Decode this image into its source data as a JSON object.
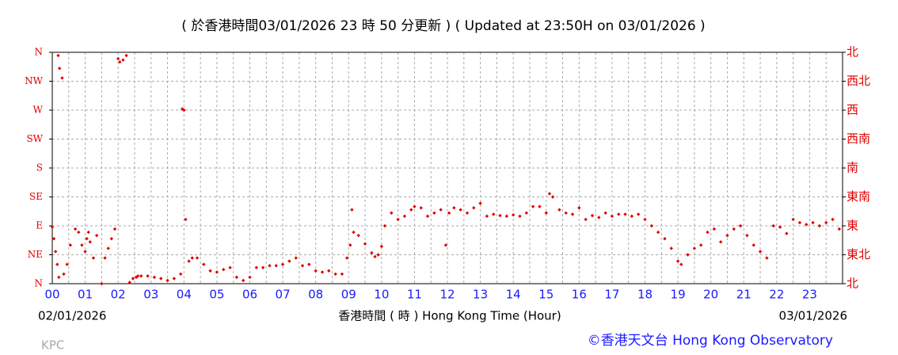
{
  "chart_data": {
    "type": "scatter",
    "title": "( 於香港時間03/01/2026 23 時 50 分更新 ) ( Updated at 23:50H on 03/01/2026 )",
    "x_label": "香港時間 ( 時 ) Hong Kong Time (Hour)",
    "start_date": "02/01/2026",
    "end_date": "03/01/2026",
    "station": "KPC",
    "credit": "©香港天文台 Hong Kong Observatory",
    "color": "#e00000",
    "grid": true,
    "xlim": [
      0,
      24
    ],
    "xticks": [
      {
        "value": 0,
        "label": "00"
      },
      {
        "value": 1,
        "label": "01"
      },
      {
        "value": 2,
        "label": "02"
      },
      {
        "value": 3,
        "label": "03"
      },
      {
        "value": 4,
        "label": "04"
      },
      {
        "value": 5,
        "label": "05"
      },
      {
        "value": 6,
        "label": "06"
      },
      {
        "value": 7,
        "label": "07"
      },
      {
        "value": 8,
        "label": "08"
      },
      {
        "value": 9,
        "label": "09"
      },
      10,
      11,
      12,
      13,
      14,
      15,
      16,
      17,
      18,
      19,
      20,
      21,
      22,
      23
    ],
    "ylim": [
      0,
      360
    ],
    "yticks": [
      {
        "value": 0,
        "label": "N"
      },
      {
        "value": 45,
        "label": "NE"
      },
      {
        "value": 90,
        "label": "E"
      },
      {
        "value": 135,
        "label": "SE"
      },
      {
        "value": 180,
        "label": "S"
      },
      {
        "value": 225,
        "label": "SW"
      },
      {
        "value": 270,
        "label": "W"
      },
      {
        "value": 315,
        "label": "NW"
      },
      {
        "value": 360,
        "label": "N"
      }
    ],
    "y2lim": [
      0,
      360
    ],
    "y2ticks": [
      {
        "value": 0,
        "label": "北"
      },
      {
        "value": 45,
        "label": "東北"
      },
      {
        "value": 90,
        "label": "東"
      },
      {
        "value": 135,
        "label": "東南"
      },
      {
        "value": 180,
        "label": "南"
      },
      {
        "value": 225,
        "label": "西南"
      },
      {
        "value": 270,
        "label": "西"
      },
      {
        "value": 315,
        "label": "西北"
      },
      {
        "value": 360,
        "label": "北"
      }
    ],
    "x": [
      0.0,
      0.05,
      0.1,
      0.15,
      0.2,
      0.18,
      0.22,
      0.3,
      0.35,
      0.45,
      0.55,
      0.7,
      0.8,
      0.9,
      1.0,
      1.05,
      1.1,
      1.15,
      1.25,
      1.35,
      1.5,
      1.6,
      1.7,
      1.8,
      1.9,
      2.0,
      2.05,
      2.15,
      2.25,
      2.35,
      2.45,
      2.55,
      2.6,
      2.7,
      2.9,
      3.1,
      3.3,
      3.5,
      3.7,
      3.9,
      3.95,
      4.0,
      4.05,
      4.15,
      4.25,
      4.4,
      4.6,
      4.8,
      5.0,
      5.2,
      5.4,
      5.6,
      5.8,
      6.0,
      6.2,
      6.4,
      6.6,
      6.8,
      7.0,
      7.2,
      7.4,
      7.6,
      7.8,
      8.0,
      8.2,
      8.4,
      8.6,
      8.8,
      8.95,
      9.05,
      9.1,
      9.15,
      9.3,
      9.5,
      9.7,
      9.8,
      9.9,
      10.0,
      10.1,
      10.3,
      10.5,
      10.7,
      10.9,
      11.0,
      11.2,
      11.4,
      11.6,
      11.8,
      11.95,
      12.05,
      12.2,
      12.4,
      12.6,
      12.8,
      13.0,
      13.2,
      13.4,
      13.6,
      13.8,
      14.0,
      14.2,
      14.4,
      14.6,
      14.8,
      15.0,
      15.1,
      15.2,
      15.4,
      15.6,
      15.8,
      16.0,
      16.2,
      16.4,
      16.6,
      16.8,
      17.0,
      17.2,
      17.4,
      17.6,
      17.8,
      18.0,
      18.2,
      18.4,
      18.6,
      18.8,
      19.0,
      19.1,
      19.3,
      19.5,
      19.7,
      19.9,
      20.1,
      20.3,
      20.5,
      20.7,
      20.9,
      21.1,
      21.3,
      21.5,
      21.7,
      21.9,
      22.1,
      22.3,
      22.5,
      22.7,
      22.9,
      23.1,
      23.3,
      23.5,
      23.7,
      23.9
    ],
    "values": [
      88,
      70,
      50,
      30,
      10,
      355,
      335,
      320,
      15,
      30,
      60,
      85,
      80,
      60,
      50,
      70,
      80,
      65,
      40,
      75,
      0,
      40,
      55,
      70,
      85,
      350,
      345,
      348,
      355,
      2,
      8,
      10,
      12,
      12,
      12,
      10,
      8,
      5,
      8,
      15,
      272,
      270,
      100,
      35,
      40,
      40,
      30,
      20,
      18,
      22,
      25,
      10,
      5,
      10,
      25,
      25,
      28,
      28,
      30,
      35,
      40,
      28,
      30,
      20,
      18,
      20,
      15,
      15,
      40,
      60,
      115,
      80,
      75,
      62,
      48,
      42,
      45,
      58,
      90,
      110,
      100,
      105,
      115,
      120,
      118,
      105,
      110,
      115,
      60,
      110,
      118,
      115,
      110,
      118,
      125,
      105,
      108,
      106,
      105,
      107,
      105,
      110,
      120,
      120,
      110,
      140,
      135,
      115,
      110,
      108,
      118,
      100,
      106,
      103,
      110,
      105,
      108,
      108,
      105,
      108,
      100,
      90,
      80,
      70,
      55,
      35,
      30,
      45,
      55,
      60,
      80,
      85,
      65,
      75,
      85,
      90,
      75,
      60,
      50,
      40,
      90,
      88,
      78,
      100,
      95,
      92,
      95,
      90,
      95,
      100,
      85
    ]
  }
}
